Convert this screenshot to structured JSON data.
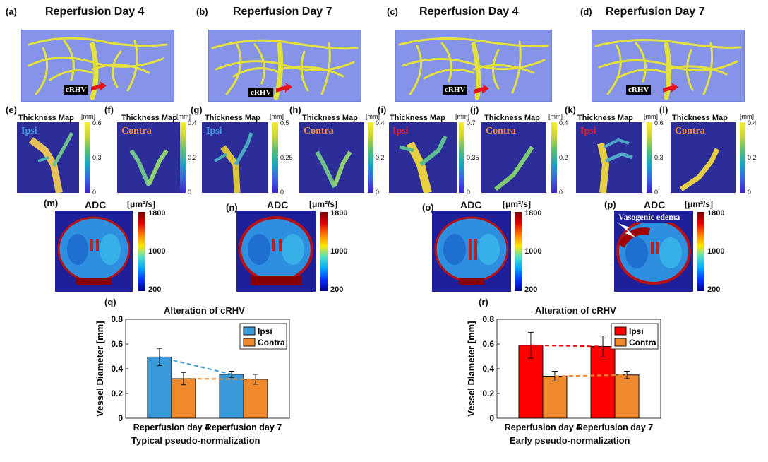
{
  "panels_top": [
    {
      "label": "(a)",
      "title": "Reperfusion Day 4",
      "tag": "cRHV"
    },
    {
      "label": "(b)",
      "title": "Reperfusion Day 7",
      "tag": "cRHV"
    },
    {
      "label": "(c)",
      "title": "Reperfusion Day 4",
      "tag": "cRHV"
    },
    {
      "label": "(d)",
      "title": "Reperfusion Day 7",
      "tag": "cRHV"
    }
  ],
  "thickness_maps": [
    {
      "label": "(e)",
      "title": "Thickness Map",
      "side": "Ipsi",
      "side_color": "#3f9bd9",
      "unit": "[mm]",
      "ticks": [
        "0.6",
        "0.3",
        "0"
      ]
    },
    {
      "label": "(f)",
      "title": "Thickness Map",
      "side": "Contra",
      "side_color": "#f08a3c",
      "unit": "[mm]",
      "ticks": [
        "0.4",
        "0.2",
        "0"
      ]
    },
    {
      "label": "(g)",
      "title": "Thickness Map",
      "side": "Ipsi",
      "side_color": "#3f9bd9",
      "unit": "[mm]",
      "ticks": [
        "0.5",
        "0.25",
        "0"
      ]
    },
    {
      "label": "(h)",
      "title": "Thickness Map",
      "side": "Contra",
      "side_color": "#f08a3c",
      "unit": "[mm]",
      "ticks": [
        "0.4",
        "0.2",
        "0"
      ]
    },
    {
      "label": "(i)",
      "title": "Thickness Map",
      "side": "Ipsi",
      "side_color": "#e0202a",
      "unit": "[mm]",
      "ticks": [
        "0.7",
        "0.35",
        "0"
      ]
    },
    {
      "label": "(j)",
      "title": "Thickness Map",
      "side": "Contra",
      "side_color": "#f08a3c",
      "unit": "[mm]",
      "ticks": [
        "0.4",
        "0.2",
        "0"
      ]
    },
    {
      "label": "(k)",
      "title": "Thickness Map",
      "side": "Ipsi",
      "side_color": "#e0202a",
      "unit": "[mm]",
      "ticks": [
        "0.6",
        "0.3",
        "0"
      ]
    },
    {
      "label": "(l)",
      "title": "Thickness Map",
      "side": "Contra",
      "side_color": "#f08a3c",
      "unit": "[mm]",
      "ticks": [
        "0.4",
        "0.2",
        "0"
      ]
    }
  ],
  "adc_maps": [
    {
      "label": "(m)",
      "title": "ADC",
      "unit": "[μm²/s]",
      "ticks": [
        "1800",
        "1000",
        "200"
      ]
    },
    {
      "label": "(n)",
      "title": "ADC",
      "unit": "[μm²/s]",
      "ticks": [
        "1800",
        "1000",
        "200"
      ]
    },
    {
      "label": "(o)",
      "title": "ADC",
      "unit": "[μm²/s]",
      "ticks": [
        "1800",
        "1000",
        "200"
      ]
    },
    {
      "label": "(p)",
      "title": "ADC",
      "unit": "[μm²/s]",
      "ticks": [
        "1800",
        "1000",
        "200"
      ],
      "annotation": "Vasogenic edema"
    }
  ],
  "chart_data": [
    {
      "type": "bar",
      "label": "(q)",
      "title": "Alteration of cRHV",
      "categories": [
        "Reperfusion day 4",
        "Reperfusion day 7"
      ],
      "series": [
        {
          "name": "Ipsi",
          "color": "#3a9ad9",
          "values": [
            0.495,
            0.355
          ],
          "errors": [
            0.07,
            0.025
          ]
        },
        {
          "name": "Contra",
          "color": "#f0892c",
          "values": [
            0.32,
            0.315
          ],
          "errors": [
            0.05,
            0.04
          ]
        }
      ],
      "ylabel": "Vessel Diameter [mm]",
      "xlabel": "Typical pseudo-normalization",
      "ylim": [
        0,
        0.8
      ],
      "yticks": [
        "0",
        "0.2",
        "0.4",
        "0.6",
        "0.8"
      ],
      "legend": "top-right"
    },
    {
      "type": "bar",
      "label": "(r)",
      "title": "Alteration of cRHV",
      "categories": [
        "Reperfusion day 4",
        "Reperfusion day 7"
      ],
      "series": [
        {
          "name": "Ipsi",
          "color": "#ff0000",
          "values": [
            0.59,
            0.58
          ],
          "errors": [
            0.105,
            0.085
          ]
        },
        {
          "name": "Contra",
          "color": "#f0892c",
          "values": [
            0.34,
            0.35
          ],
          "errors": [
            0.04,
            0.03
          ]
        }
      ],
      "ylabel": "Vessel Diameter [mm]",
      "xlabel": "Early pseudo-normalization",
      "ylim": [
        0,
        0.8
      ],
      "yticks": [
        "0",
        "0.2",
        "0.4",
        "0.6",
        "0.8"
      ],
      "legend": "top-right"
    }
  ]
}
